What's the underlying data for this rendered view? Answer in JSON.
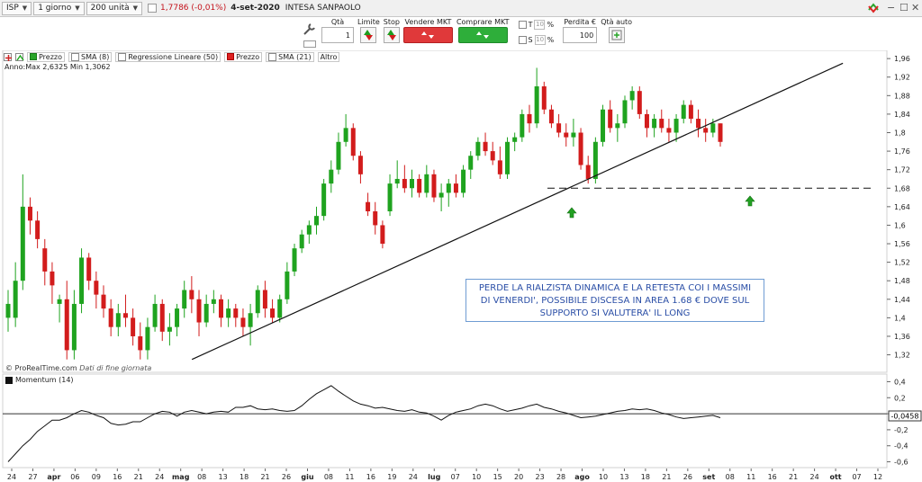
{
  "topbar": {
    "symbol": "ISP",
    "timeframe": "1 giorno",
    "units": "200 unità",
    "price": "1,7786 (-0,01%)",
    "date": "4-set-2020",
    "name": "INTESA SANPAOLO"
  },
  "ticket": {
    "qty_label": "Qtà",
    "qty_value": "1",
    "limit_label": "Limite",
    "stop_label": "Stop",
    "sell_label": "Vendere MKT",
    "buy_label": "Comprare MKT",
    "t_label": "T",
    "s_label": "S",
    "pct_placeholder": "%",
    "loss_label": "Perdita €",
    "loss_value": "100",
    "auto_qty_label": "Qtà auto"
  },
  "legend": {
    "items": [
      "Prezzo",
      "SMA (8)",
      "Regressione Lineare (50)",
      "Prezzo",
      "SMA (21)",
      "Altro"
    ],
    "annual": "Anno:Max 2,6325 Min 1,3062"
  },
  "credit": {
    "brand": "© ProRealTime.com",
    "note": "Dati di fine giornata"
  },
  "annotation": {
    "lines": [
      "PERDE LA RIALZISTA DINAMICA E LA RETESTA COI I MASSIMI",
      "DI VENERDI', POSSIBILE DISCESA IN AREA 1.68 € DOVE SUL",
      "SUPPORTO SI VALUTERA' IL LONG"
    ]
  },
  "momentum": {
    "title": "Momentum (14)",
    "current": "-0,0458"
  },
  "colors": {
    "up": "#1fa31f",
    "down": "#d21c1c",
    "note_border": "#6f9cd3",
    "note_text": "#2a4ea6",
    "momentum_line": "#111111",
    "momentum_neg": "#c0183a"
  },
  "chart_data": {
    "type": "candlestick",
    "y_ticks": [
      "1,96",
      "1,92",
      "1,88",
      "1,84",
      "1,8",
      "1,76",
      "1,72",
      "1,68",
      "1,64",
      "1,6",
      "1,56",
      "1,52",
      "1,48",
      "1,44",
      "1,4",
      "1,36",
      "1,32"
    ],
    "ylim": [
      1.29,
      1.97
    ],
    "momentum_ticks": [
      "0,4",
      "0,2",
      "0",
      "-0,2",
      "-0,4",
      "-0,6"
    ],
    "momentum_ylim": [
      -0.65,
      0.45
    ],
    "x_ticks": [
      "24",
      "27",
      "apr",
      "06",
      "09",
      "16",
      "21",
      "24",
      "mag",
      "08",
      "13",
      "18",
      "21",
      "26",
      "giu",
      "08",
      "11",
      "16",
      "19",
      "24",
      "lug",
      "07",
      "10",
      "15",
      "20",
      "23",
      "28",
      "ago",
      "10",
      "13",
      "18",
      "21",
      "26",
      "set",
      "08",
      "11",
      "16",
      "21",
      "24",
      "ott",
      "07",
      "12"
    ],
    "candles": [
      [
        1.4,
        1.46,
        1.37,
        1.43
      ],
      [
        1.4,
        1.52,
        1.38,
        1.48
      ],
      [
        1.48,
        1.71,
        1.46,
        1.64
      ],
      [
        1.64,
        1.66,
        1.58,
        1.61
      ],
      [
        1.61,
        1.63,
        1.55,
        1.57
      ],
      [
        1.55,
        1.57,
        1.47,
        1.5
      ],
      [
        1.5,
        1.52,
        1.43,
        1.47
      ],
      [
        1.43,
        1.45,
        1.39,
        1.44
      ],
      [
        1.44,
        1.48,
        1.31,
        1.33
      ],
      [
        1.33,
        1.46,
        1.31,
        1.43
      ],
      [
        1.43,
        1.55,
        1.41,
        1.53
      ],
      [
        1.53,
        1.54,
        1.46,
        1.48
      ],
      [
        1.48,
        1.5,
        1.42,
        1.45
      ],
      [
        1.45,
        1.47,
        1.4,
        1.42
      ],
      [
        1.42,
        1.44,
        1.36,
        1.38
      ],
      [
        1.38,
        1.43,
        1.36,
        1.41
      ],
      [
        1.41,
        1.45,
        1.38,
        1.4
      ],
      [
        1.4,
        1.42,
        1.34,
        1.36
      ],
      [
        1.36,
        1.39,
        1.31,
        1.33
      ],
      [
        1.33,
        1.4,
        1.31,
        1.38
      ],
      [
        1.38,
        1.45,
        1.37,
        1.43
      ],
      [
        1.43,
        1.44,
        1.35,
        1.37
      ],
      [
        1.37,
        1.41,
        1.34,
        1.38
      ],
      [
        1.38,
        1.43,
        1.36,
        1.42
      ],
      [
        1.42,
        1.48,
        1.4,
        1.46
      ],
      [
        1.46,
        1.49,
        1.41,
        1.44
      ],
      [
        1.44,
        1.46,
        1.36,
        1.39
      ],
      [
        1.39,
        1.45,
        1.38,
        1.43
      ],
      [
        1.43,
        1.46,
        1.41,
        1.44
      ],
      [
        1.44,
        1.45,
        1.38,
        1.4
      ],
      [
        1.4,
        1.44,
        1.38,
        1.42
      ],
      [
        1.42,
        1.43,
        1.38,
        1.4
      ],
      [
        1.4,
        1.42,
        1.36,
        1.38
      ],
      [
        1.38,
        1.43,
        1.34,
        1.41
      ],
      [
        1.41,
        1.47,
        1.4,
        1.46
      ],
      [
        1.46,
        1.48,
        1.4,
        1.42
      ],
      [
        1.42,
        1.44,
        1.39,
        1.4
      ],
      [
        1.4,
        1.45,
        1.39,
        1.44
      ],
      [
        1.44,
        1.52,
        1.43,
        1.5
      ],
      [
        1.5,
        1.56,
        1.49,
        1.55
      ],
      [
        1.55,
        1.59,
        1.54,
        1.58
      ],
      [
        1.58,
        1.61,
        1.56,
        1.6
      ],
      [
        1.6,
        1.64,
        1.58,
        1.62
      ],
      [
        1.62,
        1.7,
        1.61,
        1.69
      ],
      [
        1.69,
        1.74,
        1.67,
        1.72
      ],
      [
        1.72,
        1.8,
        1.71,
        1.78
      ],
      [
        1.78,
        1.84,
        1.77,
        1.81
      ],
      [
        1.81,
        1.82,
        1.74,
        1.75
      ],
      [
        1.75,
        1.76,
        1.69,
        1.71
      ],
      [
        1.65,
        1.67,
        1.62,
        1.63
      ],
      [
        1.63,
        1.65,
        1.58,
        1.6
      ],
      [
        1.6,
        1.61,
        1.55,
        1.56
      ],
      [
        1.63,
        1.71,
        1.62,
        1.69
      ],
      [
        1.69,
        1.74,
        1.68,
        1.7
      ],
      [
        1.7,
        1.73,
        1.67,
        1.68
      ],
      [
        1.68,
        1.72,
        1.66,
        1.7
      ],
      [
        1.7,
        1.71,
        1.66,
        1.67
      ],
      [
        1.67,
        1.73,
        1.66,
        1.71
      ],
      [
        1.71,
        1.72,
        1.65,
        1.66
      ],
      [
        1.66,
        1.69,
        1.63,
        1.67
      ],
      [
        1.67,
        1.7,
        1.64,
        1.69
      ],
      [
        1.69,
        1.71,
        1.66,
        1.67
      ],
      [
        1.67,
        1.73,
        1.66,
        1.72
      ],
      [
        1.72,
        1.76,
        1.7,
        1.75
      ],
      [
        1.75,
        1.79,
        1.74,
        1.78
      ],
      [
        1.78,
        1.8,
        1.75,
        1.76
      ],
      [
        1.76,
        1.78,
        1.73,
        1.74
      ],
      [
        1.74,
        1.77,
        1.7,
        1.71
      ],
      [
        1.71,
        1.79,
        1.7,
        1.78
      ],
      [
        1.78,
        1.8,
        1.76,
        1.79
      ],
      [
        1.79,
        1.85,
        1.78,
        1.84
      ],
      [
        1.84,
        1.86,
        1.8,
        1.82
      ],
      [
        1.82,
        1.94,
        1.81,
        1.9
      ],
      [
        1.9,
        1.91,
        1.84,
        1.85
      ],
      [
        1.85,
        1.86,
        1.81,
        1.82
      ],
      [
        1.82,
        1.84,
        1.79,
        1.8
      ],
      [
        1.8,
        1.82,
        1.77,
        1.79
      ],
      [
        1.79,
        1.83,
        1.77,
        1.8
      ],
      [
        1.8,
        1.81,
        1.72,
        1.73
      ],
      [
        1.73,
        1.75,
        1.69,
        1.7
      ],
      [
        1.7,
        1.79,
        1.69,
        1.78
      ],
      [
        1.78,
        1.86,
        1.77,
        1.85
      ],
      [
        1.85,
        1.87,
        1.8,
        1.81
      ],
      [
        1.81,
        1.84,
        1.78,
        1.82
      ],
      [
        1.82,
        1.88,
        1.81,
        1.87
      ],
      [
        1.87,
        1.9,
        1.85,
        1.89
      ],
      [
        1.89,
        1.9,
        1.83,
        1.84
      ],
      [
        1.84,
        1.85,
        1.79,
        1.81
      ],
      [
        1.81,
        1.84,
        1.79,
        1.83
      ],
      [
        1.83,
        1.85,
        1.8,
        1.81
      ],
      [
        1.81,
        1.83,
        1.78,
        1.8
      ],
      [
        1.8,
        1.84,
        1.78,
        1.83
      ],
      [
        1.83,
        1.87,
        1.82,
        1.86
      ],
      [
        1.86,
        1.87,
        1.82,
        1.83
      ],
      [
        1.83,
        1.85,
        1.79,
        1.81
      ],
      [
        1.81,
        1.83,
        1.78,
        1.8
      ],
      [
        1.8,
        1.83,
        1.79,
        1.82
      ],
      [
        1.82,
        1.82,
        1.77,
        1.78
      ]
    ],
    "trendline": {
      "from": [
        0.21,
        1.31
      ],
      "to": [
        0.95,
        1.95
      ]
    },
    "support_level": 1.68,
    "momentum": [
      -0.6,
      -0.5,
      -0.4,
      -0.32,
      -0.22,
      -0.15,
      -0.08,
      -0.08,
      -0.05,
      0.0,
      0.04,
      0.02,
      -0.02,
      -0.05,
      -0.12,
      -0.14,
      -0.13,
      -0.1,
      -0.1,
      -0.05,
      0.0,
      0.03,
      0.02,
      -0.03,
      0.02,
      0.04,
      0.02,
      0.0,
      0.02,
      0.03,
      0.02,
      0.08,
      0.08,
      0.1,
      0.06,
      0.05,
      0.06,
      0.04,
      0.03,
      0.04,
      0.1,
      0.18,
      0.25,
      0.3,
      0.35,
      0.28,
      0.22,
      0.16,
      0.12,
      0.1,
      0.07,
      0.08,
      0.06,
      0.04,
      0.03,
      0.05,
      0.02,
      0.01,
      -0.03,
      -0.08,
      -0.02,
      0.02,
      0.04,
      0.06,
      0.1,
      0.12,
      0.1,
      0.06,
      0.03,
      0.05,
      0.07,
      0.1,
      0.12,
      0.08,
      0.06,
      0.03,
      0.01,
      -0.02,
      -0.05,
      -0.04,
      -0.03,
      -0.01,
      0.01,
      0.03,
      0.04,
      0.06,
      0.05,
      0.06,
      0.04,
      0.01,
      -0.01,
      -0.04,
      -0.06,
      -0.05,
      -0.04,
      -0.03,
      -0.02,
      -0.05
    ]
  }
}
